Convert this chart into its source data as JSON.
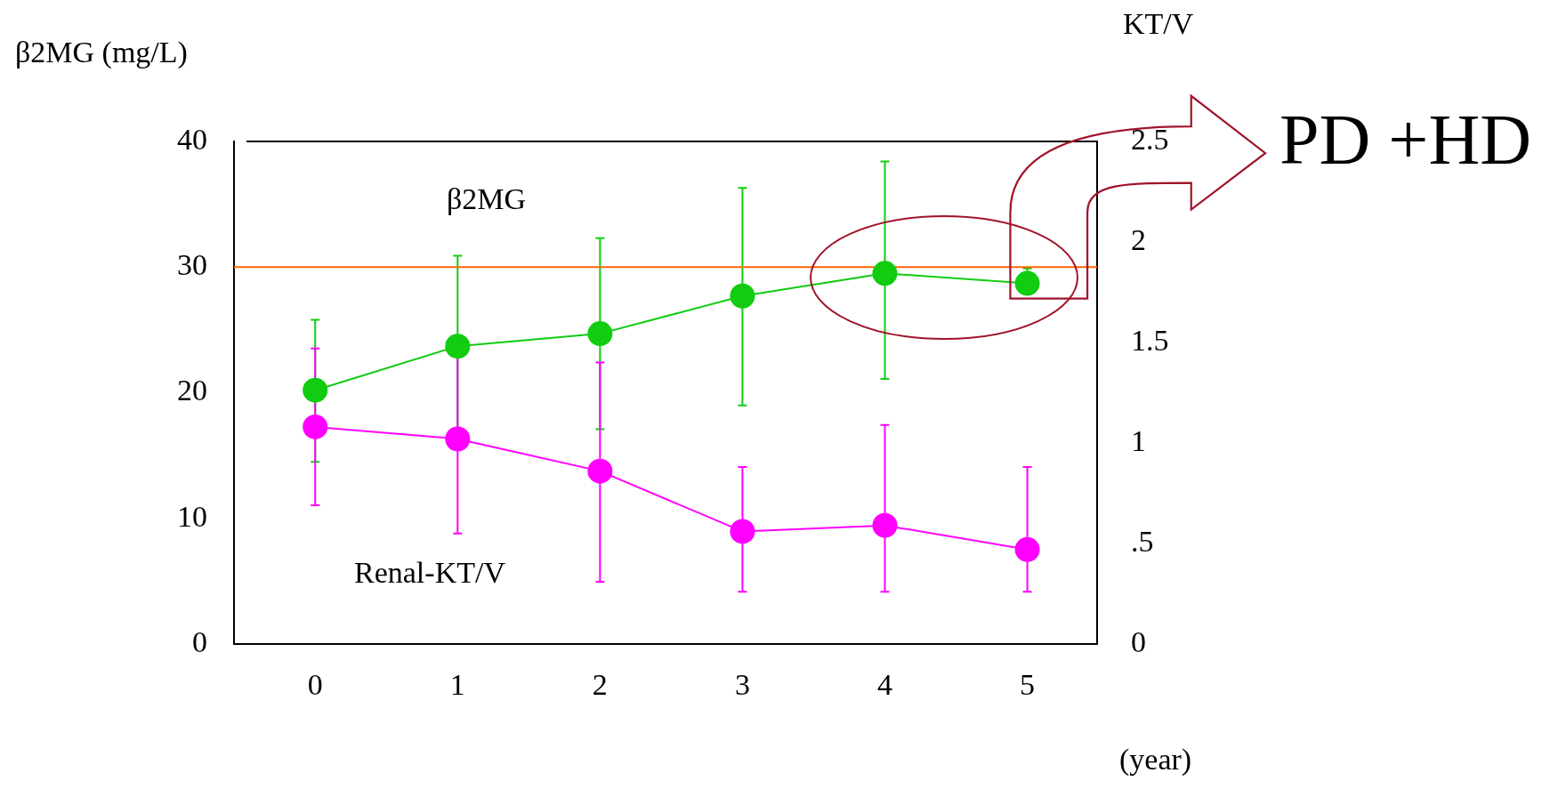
{
  "chart_data": {
    "type": "line",
    "xlabel": "(year)",
    "ylabel": "β2MG (mg/L)",
    "y2label": "KT/V",
    "x": [
      0,
      1,
      2,
      3,
      4,
      5
    ],
    "xlim": [
      -0.57,
      5.49
    ],
    "xticks": [
      0,
      1,
      2,
      3,
      4,
      5
    ],
    "ylim": [
      0,
      40
    ],
    "yticks": [
      0,
      10,
      20,
      30,
      40
    ],
    "y2lim": [
      0,
      2.5
    ],
    "y2ticks": [
      0,
      {
        "value": 0.5,
        "label": ".5"
      },
      1,
      1.5,
      2,
      2.5
    ],
    "series": [
      {
        "color": "#11cc11",
        "values": [
          20.2,
          23.7,
          24.7,
          27.7,
          29.5,
          28.7
        ],
        "errors": [
          [
            14.5,
            25.8
          ],
          7.2,
          [
            17.1,
            32.3
          ],
          [
            19.0,
            36.3
          ],
          [
            21.1,
            38.4
          ],
          [
            27.9,
            29.9
          ]
        ]
      },
      {
        "color": "#ff00ff",
        "axis": "y2",
        "values": [
          1.08,
          1.02,
          0.86,
          0.56,
          0.59,
          0.47
        ],
        "errors": [
          [
            0.69,
            1.47
          ],
          [
            0.55,
            1.53
          ],
          [
            0.31,
            1.4
          ],
          [
            0.26,
            0.88
          ],
          [
            0.26,
            1.09
          ],
          [
            0.26,
            0.88
          ]
        ]
      }
    ],
    "ref_lines": [
      {
        "axis": "y",
        "value": 30,
        "color": "#ff6600"
      }
    ],
    "annotations": [
      "β2MG",
      "Renal-KT/V",
      "PD +HD"
    ],
    "marker": "circle",
    "line_style": "solid",
    "grid": false,
    "legend": false
  }
}
